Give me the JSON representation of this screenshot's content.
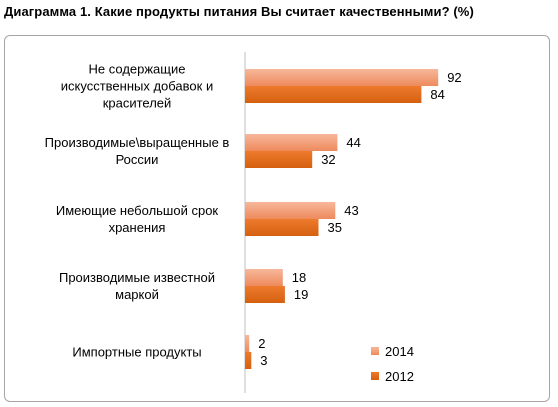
{
  "chart_data": {
    "type": "bar",
    "orientation": "horizontal",
    "title": "Диаграмма 1. Какие продукты питания Вы считает качественными? (%)",
    "categories": [
      [
        "Не содержащие",
        "искусственных добавок и",
        "красителей"
      ],
      [
        "Производимые\\выращенные в",
        "России"
      ],
      [
        "Имеющие небольшой срок",
        "хранения"
      ],
      [
        "Производимые известной",
        "маркой"
      ],
      [
        "Импортные продукты"
      ]
    ],
    "series": [
      {
        "name": "2014",
        "values": [
          92,
          44,
          43,
          18,
          2
        ],
        "color": "#f5a07a",
        "gradient_to": "#e36b2d"
      },
      {
        "name": "2012",
        "values": [
          84,
          32,
          35,
          19,
          3
        ],
        "color": "#e36c0a",
        "gradient_to": "#c55a11"
      }
    ],
    "xlim": [
      0,
      100
    ],
    "grid": false,
    "legend_position": "bottom-right",
    "data_labels": true
  }
}
